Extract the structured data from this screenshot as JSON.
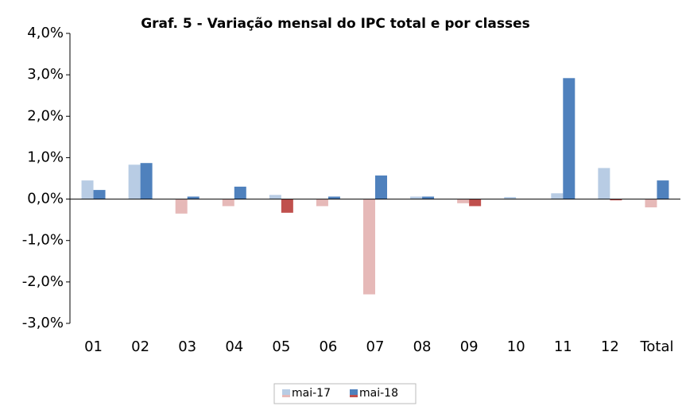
{
  "chart_data": {
    "type": "bar",
    "title": "Graf. 5 - Variação mensal do IPC total e por classes",
    "categories": [
      "01",
      "02",
      "03",
      "04",
      "05",
      "06",
      "07",
      "08",
      "09",
      "10",
      "11",
      "12",
      "Total"
    ],
    "series": [
      {
        "name": "mai-17",
        "color": "#b8cce4",
        "negative_color": "#e6b9b8",
        "values": [
          0.45,
          0.83,
          -0.35,
          -0.17,
          0.1,
          -0.17,
          -2.3,
          0.06,
          -0.1,
          0.05,
          0.14,
          0.75,
          -0.2
        ]
      },
      {
        "name": "mai-18",
        "color": "#4f81bd",
        "negative_color": "#c0504d",
        "values": [
          0.22,
          0.87,
          0.06,
          0.3,
          -0.33,
          0.06,
          0.57,
          0.06,
          -0.17,
          0.0,
          2.92,
          -0.03,
          0.45
        ]
      }
    ],
    "ylim": [
      -3,
      4
    ],
    "yticks": [
      {
        "value": -3,
        "label": "-3,0%"
      },
      {
        "value": -2,
        "label": "-2,0%"
      },
      {
        "value": -1,
        "label": "-1,0%"
      },
      {
        "value": 0,
        "label": "0,0%"
      },
      {
        "value": 1,
        "label": "1,0%"
      },
      {
        "value": 2,
        "label": "2,0%"
      },
      {
        "value": 3,
        "label": "3,0%"
      },
      {
        "value": 4,
        "label": "4,0%"
      }
    ],
    "grid": false,
    "legend": "bottom"
  }
}
